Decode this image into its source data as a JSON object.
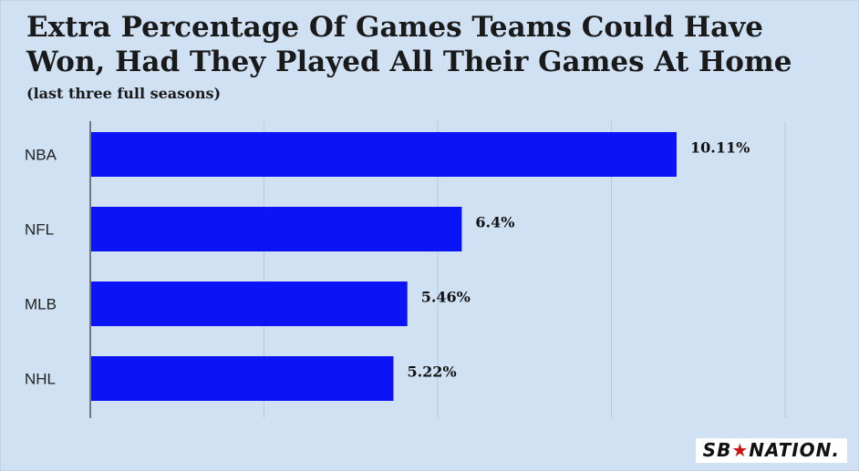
{
  "header": {
    "title_line1": "Extra Percentage Of Games Teams Could Have",
    "title_line2": "Won, Had They Played All Their Games At Home",
    "subtitle": "(last three full seasons)"
  },
  "logo": {
    "left": "SB",
    "star": "★",
    "right": "NATION."
  },
  "colors": {
    "background": "#cfe1f3",
    "bar": "#0a14f5",
    "gridline": "#b9c9da"
  },
  "chart_data": {
    "type": "bar",
    "orientation": "horizontal",
    "categories": [
      "NBA",
      "NFL",
      "MLB",
      "NHL"
    ],
    "values": [
      10.11,
      6.4,
      5.46,
      5.22
    ],
    "value_labels": [
      "10.11%",
      "6.4%",
      "5.46%",
      "5.22%"
    ],
    "title": "Extra Percentage Of Games Teams Could Have Won, Had They Played All Their Games At Home",
    "subtitle": "(last three full seasons)",
    "xlim": [
      0,
      12
    ],
    "grid": true,
    "legend": "none"
  }
}
